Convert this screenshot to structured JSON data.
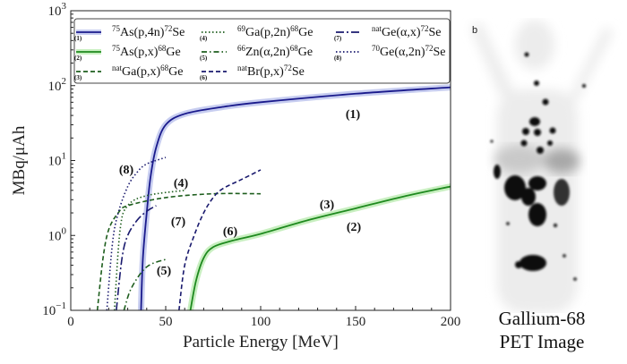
{
  "chart_data": {
    "type": "line",
    "xlabel": "Particle Energy [MeV]",
    "ylabel": "MBq/μAh",
    "xlim": [
      0,
      200
    ],
    "ylim": [
      0.1,
      1000
    ],
    "yscale": "log",
    "grid": false,
    "legend_position": "top",
    "x_ticks": [
      "0",
      "50",
      "100",
      "150",
      "200"
    ],
    "y_ticks": [
      {
        "base": "10",
        "exp": "−1"
      },
      {
        "base": "10",
        "exp": "0"
      },
      {
        "base": "10",
        "exp": "1"
      },
      {
        "base": "10",
        "exp": "2"
      },
      {
        "base": "10",
        "exp": "3"
      }
    ],
    "series": [
      {
        "id": "1",
        "sup1": "75",
        "mid": "As(p,4n)",
        "sup2": "72",
        "end": "Se",
        "color": "#1a1a8c",
        "style": "solid",
        "band": "#c7cdf0",
        "x": [
          37,
          38,
          40,
          42,
          45,
          50,
          60,
          80,
          100,
          150,
          200
        ],
        "y": [
          0.1,
          0.5,
          2,
          6,
          15,
          30,
          42,
          52,
          60,
          78,
          95
        ]
      },
      {
        "id": "2",
        "sup1": "75",
        "mid": "As(p,x)",
        "sup2": "68",
        "end": "Ge",
        "color": "#1f8a1f",
        "style": "solid",
        "band": "#c8efc0",
        "x": [
          63,
          66,
          70,
          75,
          85,
          100,
          125,
          150,
          175,
          200
        ],
        "y": [
          0.1,
          0.25,
          0.5,
          0.7,
          0.85,
          1.05,
          1.6,
          2.3,
          3.3,
          4.5
        ]
      },
      {
        "id": "3",
        "sup1": "nat",
        "mid": "Ga(p,x)",
        "sup2": "68",
        "end": "Ge",
        "color": "#1e5e1e",
        "style": "dashed",
        "x": [
          14,
          17,
          20,
          25,
          30,
          50,
          75,
          100
        ],
        "y": [
          0.1,
          0.5,
          1.2,
          2,
          2.5,
          3.2,
          3.6,
          3.6
        ]
      },
      {
        "id": "4",
        "sup1": "69",
        "mid": "Ga(p,2n)",
        "sup2": "68",
        "end": "Ge",
        "color": "#1e5e1e",
        "style": "dotted",
        "x": [
          23,
          26,
          30,
          40,
          60
        ],
        "y": [
          0.1,
          1.2,
          2.5,
          3.4,
          4.0
        ]
      },
      {
        "id": "5",
        "sup1": "66",
        "mid": "Zn(α,2n)",
        "sup2": "68",
        "end": "Ge",
        "color": "#1e5e1e",
        "style": "dashdot",
        "x": [
          28,
          32,
          40,
          50
        ],
        "y": [
          0.1,
          0.2,
          0.38,
          0.48
        ]
      },
      {
        "id": "6",
        "sup1": "nat",
        "mid": "Br(p,x)",
        "sup2": "72",
        "end": "Se",
        "color": "#1a1a6e",
        "style": "dashed",
        "x": [
          57,
          60,
          65,
          70,
          75,
          80,
          90,
          100
        ],
        "y": [
          0.1,
          0.4,
          1.0,
          2,
          3.2,
          4.2,
          5.6,
          7.5
        ]
      },
      {
        "id": "7",
        "sup1": "nat",
        "mid": "Ge(α,x)",
        "sup2": "72",
        "end": "Se",
        "color": "#1a1a6e",
        "style": "longdashdot",
        "x": [
          24,
          27,
          30,
          35,
          40,
          45
        ],
        "y": [
          0.1,
          0.5,
          1.0,
          1.6,
          2.1,
          2.5
        ]
      },
      {
        "id": "8",
        "sup1": "70",
        "mid": "Ge(α,2n)",
        "sup2": "72",
        "end": "Se",
        "color": "#1a1a6e",
        "style": "dotted",
        "x": [
          19,
          22,
          25,
          30,
          35,
          40,
          50
        ],
        "y": [
          0.1,
          0.8,
          2,
          4.5,
          7,
          9,
          11
        ]
      }
    ],
    "annotations": [
      "(1)",
      "(2)",
      "(3)",
      "(4)",
      "(5)",
      "(6)",
      "(7)",
      "(8)"
    ]
  },
  "image_panel": {
    "panel_label": "b",
    "caption_line1": "Gallium-68",
    "caption_line2": "PET Image"
  }
}
